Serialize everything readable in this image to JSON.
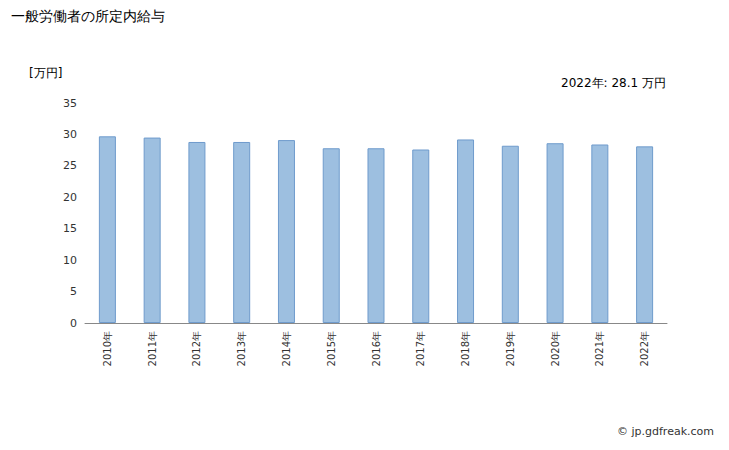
{
  "chart_data": {
    "type": "bar",
    "title": "一般労働者の所定内給与",
    "y_label": "[万円]",
    "annotation": "2022年: 28.1 万円",
    "source": "© jp.gdfreak.com",
    "categories": [
      "2010年",
      "2011年",
      "2012年",
      "2013年",
      "2014年",
      "2015年",
      "2016年",
      "2017年",
      "2018年",
      "2019年",
      "2020年",
      "2021年",
      "2022年"
    ],
    "values": [
      29.7,
      29.5,
      28.8,
      28.8,
      29.1,
      27.8,
      27.8,
      27.6,
      29.2,
      28.2,
      28.6,
      28.4,
      28.1
    ],
    "color": "#9dbfe0",
    "ylim": [
      0,
      35
    ],
    "yticks": [
      0,
      5,
      10,
      15,
      20,
      25,
      30,
      35
    ],
    "grid": false
  }
}
